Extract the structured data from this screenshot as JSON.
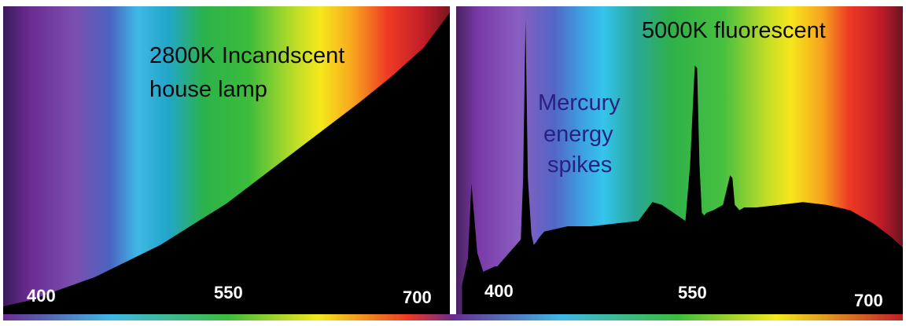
{
  "chart_data": [
    {
      "type": "area",
      "title_lines": [
        "2800K Incandscent",
        "house lamp"
      ],
      "xlabel": "",
      "ylabel": "",
      "x_ticks": [
        "400",
        "550",
        "700"
      ],
      "xlim": [
        380,
        720
      ],
      "ylim": [
        0,
        1
      ],
      "grid": false,
      "series_x": [
        380,
        400,
        450,
        500,
        550,
        600,
        650,
        675,
        700,
        710,
        720
      ],
      "series_y": [
        0.0,
        0.02,
        0.1,
        0.21,
        0.35,
        0.52,
        0.69,
        0.78,
        0.88,
        0.94,
        1.0
      ]
    },
    {
      "type": "area",
      "title": "5000K fluorescent",
      "annotation_lines": [
        "Mercury",
        "energy",
        "spikes"
      ],
      "xlabel": "",
      "ylabel": "",
      "x_ticks": [
        "400",
        "550",
        "700"
      ],
      "xlim": [
        345,
        725
      ],
      "ylim": [
        0,
        1
      ],
      "grid": false,
      "series_x": [
        350,
        355,
        358,
        363,
        368,
        378,
        380,
        400,
        402,
        404,
        406,
        409,
        411,
        413,
        416,
        420,
        440,
        460,
        480,
        500,
        512,
        520,
        540,
        544,
        548,
        550,
        552,
        554,
        556,
        558,
        564,
        572,
        578,
        580,
        582,
        586,
        590,
        600,
        620,
        640,
        660,
        680,
        700,
        715,
        725
      ],
      "series_y": [
        0.0,
        0.1,
        0.38,
        0.12,
        0.05,
        0.07,
        0.07,
        0.17,
        0.4,
        0.99,
        0.4,
        0.19,
        0.15,
        0.16,
        0.18,
        0.2,
        0.22,
        0.22,
        0.23,
        0.24,
        0.31,
        0.3,
        0.24,
        0.45,
        0.82,
        0.81,
        0.45,
        0.27,
        0.26,
        0.27,
        0.28,
        0.3,
        0.41,
        0.4,
        0.3,
        0.28,
        0.29,
        0.29,
        0.3,
        0.31,
        0.3,
        0.28,
        0.23,
        0.18,
        0.14
      ]
    }
  ]
}
